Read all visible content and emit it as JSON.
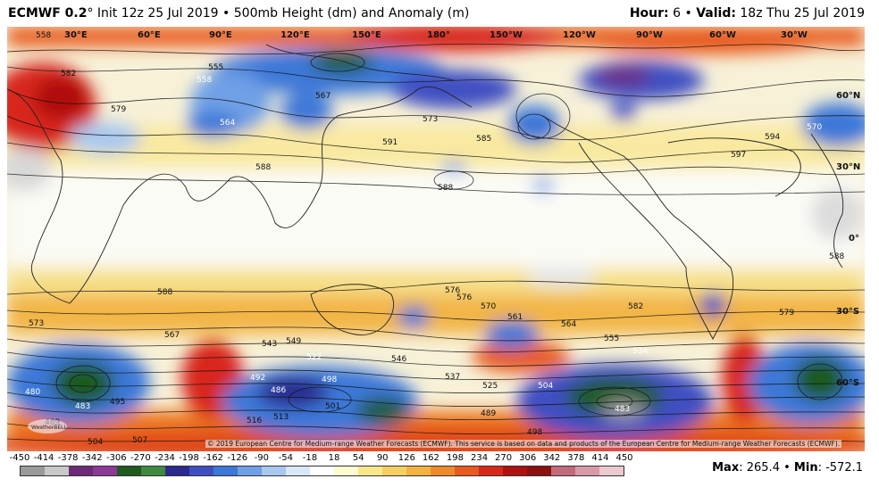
{
  "header": {
    "model": "ECMWF 0.2",
    "degree": "°",
    "init": "Init 12z 25 Jul 2019",
    "sep": "•",
    "product": "500mb Height (dm) and Anomaly (m)",
    "hour_label": "Hour:",
    "hour_value": "6",
    "valid_label": "Valid:",
    "valid_value": "18z Thu 25 Jul 2019"
  },
  "map": {
    "longitudes": [
      "30°E",
      "60°E",
      "90°E",
      "120°E",
      "150°E",
      "180°",
      "150°W",
      "120°W",
      "90°W",
      "60°W",
      "30°W"
    ],
    "latitudes": [
      "60°N",
      "30°N",
      "0°",
      "30°S",
      "60°S"
    ],
    "contour_labels": [
      "558",
      "582",
      "579",
      "555",
      "558",
      "564",
      "567",
      "573",
      "585",
      "591",
      "588",
      "597",
      "594",
      "570",
      "588",
      "576",
      "582",
      "588",
      "573",
      "567",
      "543",
      "549",
      "522",
      "498",
      "492",
      "486",
      "501",
      "516",
      "513",
      "507",
      "504",
      "489",
      "480",
      "483",
      "495",
      "537",
      "546",
      "534",
      "525",
      "498",
      "483",
      "489",
      "504",
      "561",
      "570",
      "576",
      "564",
      "555",
      "579",
      "588"
    ],
    "credit": "© 2019 European Centre for Medium-range Weather Forecasts (ECMWF). This service is based on data and products of the European Centre for Medium-range Weather Forecasts (ECMWF).",
    "logo_text": "WeatherBELL"
  },
  "legend": {
    "ticks": [
      "-450",
      "-414",
      "-378",
      "-342",
      "-306",
      "-270",
      "-234",
      "-198",
      "-162",
      "-126",
      "-90",
      "-54",
      "-18",
      "18",
      "54",
      "90",
      "126",
      "162",
      "198",
      "234",
      "270",
      "306",
      "342",
      "378",
      "414",
      "450"
    ],
    "colors": [
      "#9a9a9a",
      "#c8c8c8",
      "#6e2a78",
      "#8a3a96",
      "#1f5a1f",
      "#3f8a3f",
      "#2a2a8f",
      "#3f4fc2",
      "#3c78d8",
      "#6fa0e6",
      "#a8c8f0",
      "#d8e8f8",
      "#ffffff",
      "#fffbd0",
      "#f8e88a",
      "#f5d060",
      "#f2b340",
      "#ef8a2a",
      "#e85a1e",
      "#d8281a",
      "#b01010",
      "#8c1010",
      "#c06a7a",
      "#d89aa8",
      "#ecc8d0"
    ]
  },
  "stats": {
    "max_label": "Max",
    "max_value": ": 265.4",
    "sep": "•",
    "min_label": "Min",
    "min_value": ": -572.1"
  }
}
